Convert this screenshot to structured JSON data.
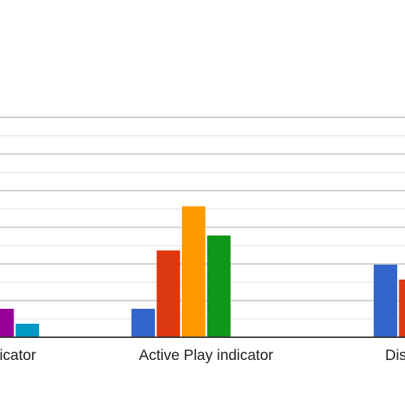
{
  "chart_data": {
    "type": "bar",
    "categories": [
      "ndicator",
      "Active Play indicator",
      "Dis"
    ],
    "series": [
      {
        "color": "#3366cc",
        "values": [
          null,
          40,
          102
        ]
      },
      {
        "color": "#dc3912",
        "values": [
          null,
          122,
          81
        ]
      },
      {
        "color": "#ff9900",
        "values": [
          null,
          184,
          null
        ]
      },
      {
        "color": "#109618",
        "values": [
          null,
          143,
          null
        ]
      },
      {
        "color": "#990099",
        "values": [
          40,
          null,
          null
        ]
      },
      {
        "color": "#0099c6",
        "values": [
          19,
          null,
          null
        ]
      }
    ],
    "ylim": [
      0,
      310
    ],
    "grid": true,
    "legend": "none"
  }
}
